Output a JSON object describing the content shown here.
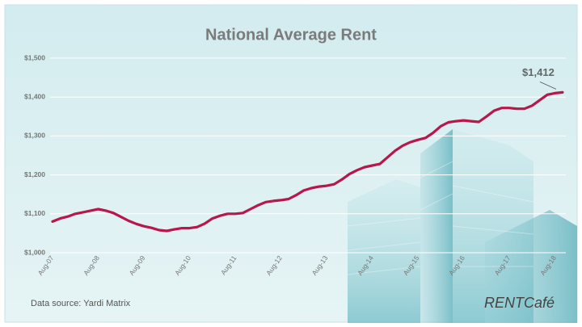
{
  "chart_data": {
    "type": "line",
    "title": "National Average Rent",
    "source": "Data source:  Yardi Matrix",
    "logo": "RENTCafé",
    "annotations": [
      {
        "text": "$1,412"
      }
    ],
    "categories": [
      "Aug-07",
      null,
      null,
      null,
      null,
      null,
      "Aug-08",
      null,
      null,
      null,
      null,
      null,
      "Aug-09",
      null,
      null,
      null,
      null,
      null,
      "Aug-10",
      null,
      null,
      null,
      null,
      null,
      "Aug-11",
      null,
      null,
      null,
      null,
      null,
      "Aug-12",
      null,
      null,
      null,
      null,
      null,
      "Aug-13",
      null,
      null,
      null,
      null,
      null,
      "Aug-14",
      null,
      null,
      null,
      null,
      null,
      "Aug-15",
      null,
      null,
      null,
      null,
      null,
      "Aug-16",
      null,
      null,
      null,
      null,
      null,
      "Aug-17",
      null,
      null,
      null,
      null,
      null,
      "Aug-18",
      null
    ],
    "values": [
      1080,
      1088,
      1093,
      1100,
      1104,
      1108,
      1112,
      1108,
      1102,
      1092,
      1082,
      1074,
      1068,
      1064,
      1058,
      1056,
      1060,
      1063,
      1063,
      1066,
      1075,
      1088,
      1095,
      1100,
      1100,
      1102,
      1112,
      1122,
      1130,
      1133,
      1135,
      1138,
      1148,
      1160,
      1166,
      1170,
      1172,
      1176,
      1188,
      1202,
      1212,
      1220,
      1224,
      1228,
      1245,
      1262,
      1275,
      1284,
      1290,
      1295,
      1308,
      1325,
      1335,
      1338,
      1340,
      1338,
      1336,
      1350,
      1365,
      1372,
      1372,
      1370,
      1370,
      1378,
      1392,
      1406,
      1410,
      1412
    ],
    "color": "#b8174b",
    "ylim": [
      1000,
      1500
    ],
    "yticks": [
      {
        "value": 1000,
        "label": "$1,000"
      },
      {
        "value": 1100,
        "label": "$1,100"
      },
      {
        "value": 1200,
        "label": "$1,200"
      },
      {
        "value": 1300,
        "label": "$1,300"
      },
      {
        "value": 1400,
        "label": "$1,400"
      },
      {
        "value": 1500,
        "label": "$1,500"
      }
    ],
    "grid": true
  }
}
